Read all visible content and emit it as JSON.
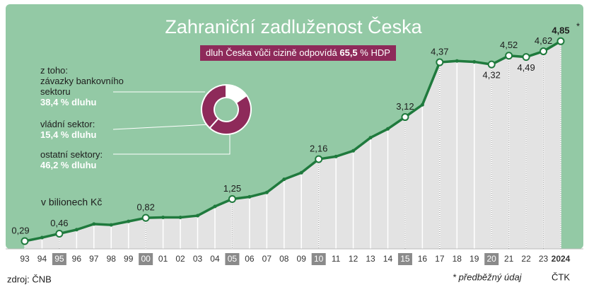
{
  "chart_data": [
    {
      "type": "line",
      "title": "Zahraniční zadluženost Česka",
      "subtitle": "v bilionech Kč",
      "categories": [
        "93",
        "94",
        "95",
        "96",
        "97",
        "98",
        "99",
        "00",
        "01",
        "02",
        "03",
        "04",
        "05",
        "06",
        "07",
        "08",
        "09",
        "10",
        "11",
        "12",
        "13",
        "14",
        "15",
        "16",
        "17",
        "18",
        "19",
        "20",
        "21",
        "22",
        "23",
        "2024"
      ],
      "values": [
        0.29,
        0.37,
        0.46,
        0.55,
        0.68,
        0.66,
        0.74,
        0.82,
        0.83,
        0.83,
        0.87,
        1.08,
        1.25,
        1.3,
        1.4,
        1.7,
        1.85,
        2.16,
        2.22,
        2.35,
        2.65,
        2.85,
        3.12,
        3.4,
        4.37,
        4.4,
        4.38,
        4.32,
        4.52,
        4.49,
        4.62,
        4.85
      ],
      "value_labels": [
        "0,29",
        null,
        "0,46",
        null,
        null,
        null,
        null,
        "0,82",
        null,
        null,
        null,
        null,
        "1,25",
        null,
        null,
        null,
        null,
        "2,16",
        null,
        null,
        null,
        null,
        "3,12",
        null,
        "4,37",
        null,
        null,
        "4,32",
        "4,52",
        "4,49",
        "4,62",
        "4,85"
      ],
      "value_note": "*",
      "color": "#1f7a3d",
      "ylim": [
        0,
        5
      ],
      "callout": [
        "dluh Česka vůči cizině odpovídá",
        "65,5",
        "% HDP"
      ],
      "source": "zdroj: ČNB",
      "note": "* předběžný údaj",
      "credit": "ČTK"
    },
    {
      "type": "pie",
      "intro": "z toho:",
      "categories": [
        "závazky bankovního sektoru",
        "vládní sektor:",
        "ostatní sektory:"
      ],
      "values": [
        38.4,
        15.4,
        46.2
      ],
      "value_labels": [
        "38,4 % dluhu",
        "15,4 % dluhu",
        "46,2 % dluhu"
      ],
      "colors": [
        "#8e2a5a",
        "#ffffff",
        "#8e2a5a"
      ]
    }
  ]
}
